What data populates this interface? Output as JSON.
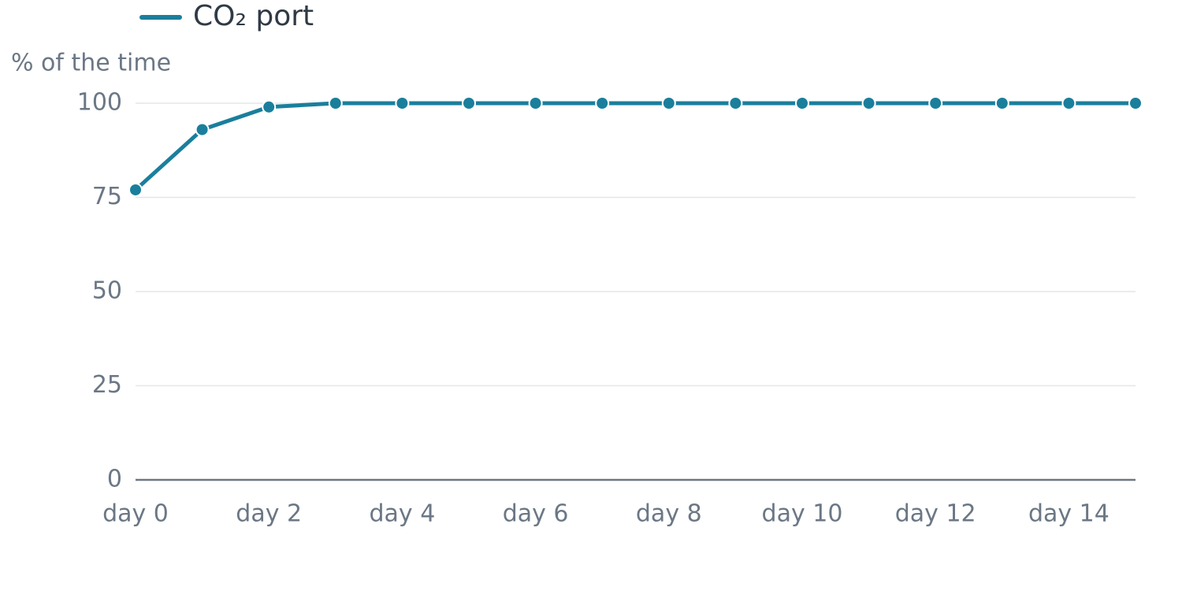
{
  "chart_data": {
    "type": "line",
    "legend": "top-left",
    "y_label": "% of the time",
    "categories": [
      "day 0",
      null,
      "day 2",
      null,
      "day 4",
      null,
      "day 6",
      null,
      "day 8",
      null,
      "day 10",
      null,
      "day 12",
      null,
      "day 14",
      null
    ],
    "series": [
      {
        "name": "CO₂ port",
        "color": "#1a7f9c",
        "values": [
          77,
          93,
          99,
          100,
          100,
          100,
          100,
          100,
          100,
          100,
          100,
          100,
          100,
          100,
          100,
          100
        ]
      }
    ],
    "ylim": [
      0,
      100
    ],
    "yticks": [
      0,
      25,
      50,
      75,
      100
    ],
    "grid": true
  }
}
